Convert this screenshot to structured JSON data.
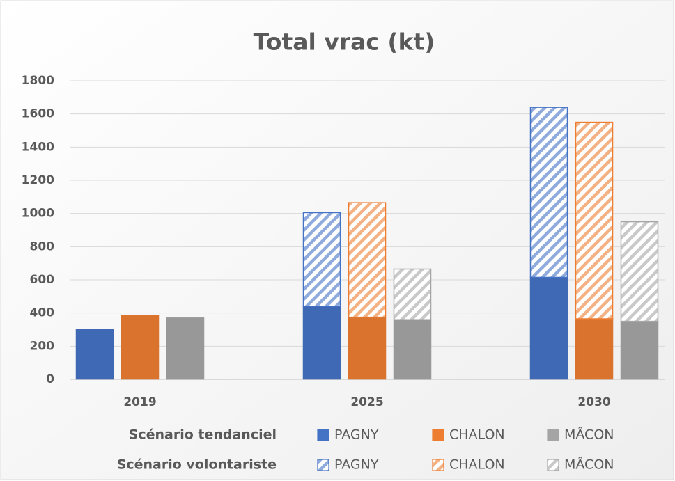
{
  "chart_data": {
    "type": "bar",
    "title": "Total vrac (kt)",
    "categories": [
      "2019",
      "2025",
      "2030"
    ],
    "ylim": [
      0,
      1800
    ],
    "yticks": [
      0,
      200,
      400,
      600,
      800,
      1000,
      1200,
      1400,
      1600,
      1800
    ],
    "grid": true,
    "stacked": true,
    "scenarios": [
      {
        "name": "Scénario tendanciel",
        "hatched": false,
        "series": [
          {
            "name": "PAGNY",
            "color": "#4472c4",
            "values": [
              300,
              440,
              615
            ]
          },
          {
            "name": "CHALON",
            "color": "#ed7d31",
            "values": [
              385,
              375,
              365
            ]
          },
          {
            "name": "MÂCON",
            "color": "#a5a5a5",
            "values": [
              370,
              360,
              350
            ]
          }
        ]
      },
      {
        "name": "Scénario volontariste",
        "hatched": true,
        "series": [
          {
            "name": "PAGNY",
            "color": "#4472c4",
            "values": [
              null,
              565,
              1025
            ]
          },
          {
            "name": "CHALON",
            "color": "#ed7d31",
            "values": [
              null,
              690,
              1185
            ]
          },
          {
            "name": "MÂCON",
            "color": "#a5a5a5",
            "values": [
              null,
              305,
              600
            ]
          }
        ]
      }
    ]
  }
}
